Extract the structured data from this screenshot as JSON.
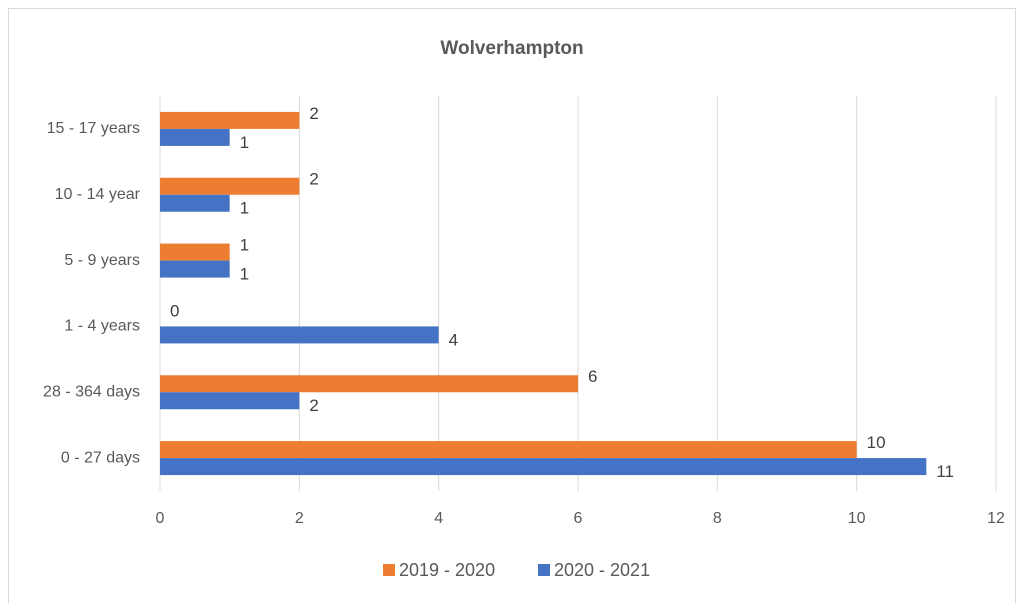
{
  "chart_data": {
    "type": "bar",
    "title": "Wolverhampton",
    "categories": [
      "0 - 27 days",
      "28 - 364 days",
      "1 - 4 years",
      "5 - 9 years",
      "10 - 14 year",
      "15 - 17 years"
    ],
    "series": [
      {
        "name": "2019 - 2020",
        "color": "#ed7d31",
        "values": [
          10,
          6,
          0,
          1,
          2,
          2
        ]
      },
      {
        "name": "2020 - 2021",
        "color": "#4472c4",
        "values": [
          11,
          2,
          4,
          1,
          1,
          1
        ]
      }
    ],
    "xlim": [
      0,
      12
    ],
    "xticks": [
      0,
      2,
      4,
      6,
      8,
      10,
      12
    ],
    "grid": true
  }
}
